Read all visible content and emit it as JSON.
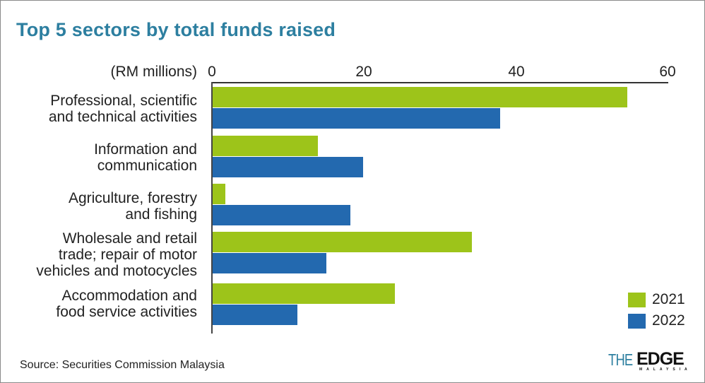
{
  "title": "Top 5 sectors by total funds raised",
  "unit_label": "(RM millions)",
  "source": "Source: Securities Commission Malaysia",
  "logo": {
    "the": "THE",
    "edge": "EDGE",
    "sub": "MALAYSIA"
  },
  "colors": {
    "2021": "#9dc41a",
    "2022": "#2369af",
    "title": "#2d7fa0"
  },
  "legend": [
    {
      "label": "2021",
      "color": "#9dc41a"
    },
    {
      "label": "2022",
      "color": "#2369af"
    }
  ],
  "axis": {
    "ticks": [
      "0",
      "20",
      "40",
      "60"
    ]
  },
  "categories_display": [
    "Professional, scientific\nand technical activities",
    "Information and\ncommunication",
    "Agriculture, forestry\nand fishing",
    "Wholesale and retail\ntrade; repair of motor\nvehicles and motocycles",
    "Accommodation and\nfood service activities"
  ],
  "chart_data": {
    "type": "bar",
    "orientation": "horizontal",
    "title": "Top 5 sectors by total funds raised",
    "xlabel": "(RM millions)",
    "ylabel": "",
    "xlim": [
      0,
      60
    ],
    "x_ticks": [
      0,
      20,
      40,
      60
    ],
    "grid": false,
    "legend_position": "bottom-right",
    "categories": [
      "Professional, scientific and technical activities",
      "Information and communication",
      "Agriculture, forestry and fishing",
      "Wholesale and retail trade; repair of motor vehicles and motocycles",
      "Accommodation and food service activities"
    ],
    "series": [
      {
        "name": "2021",
        "color": "#9dc41a",
        "values": [
          54.6,
          13.9,
          1.7,
          34.1,
          24.0
        ]
      },
      {
        "name": "2022",
        "color": "#2369af",
        "values": [
          37.9,
          19.8,
          18.1,
          15.0,
          11.2
        ]
      }
    ],
    "source": "Source: Securities Commission Malaysia"
  }
}
